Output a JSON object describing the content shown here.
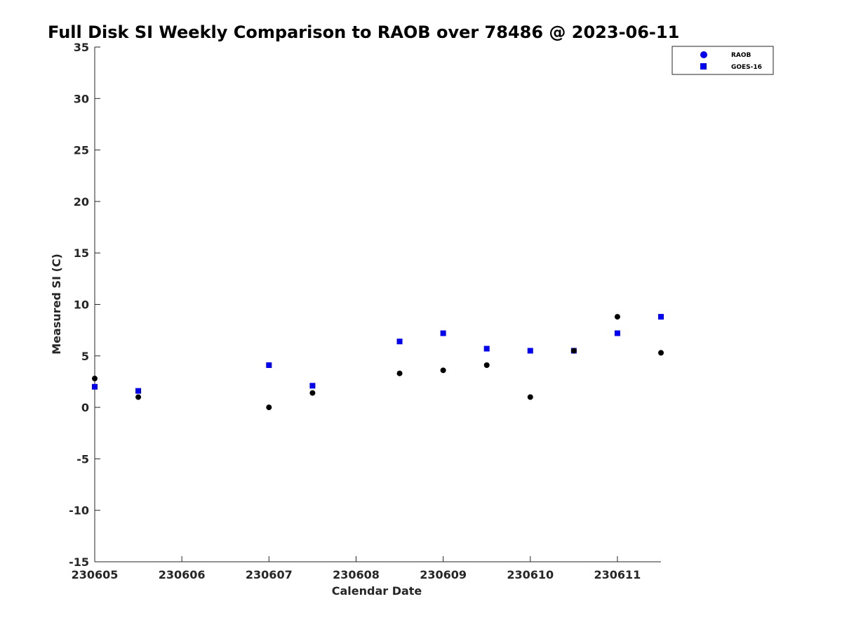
{
  "chart_data": {
    "type": "scatter",
    "title": "Full Disk SI Weekly Comparison to RAOB over 78486 @ 2023-06-11",
    "xlabel": "Calendar Date",
    "ylabel": "Measured SI (C)",
    "xlim": [
      0,
      6.5
    ],
    "ylim": [
      -15,
      35
    ],
    "x_tick_values": [
      0,
      1,
      2,
      3,
      4,
      5,
      6
    ],
    "x_tick_labels": [
      "230605",
      "230606",
      "230607",
      "230608",
      "230609",
      "230610",
      "230611"
    ],
    "y_ticks": [
      -15,
      -10,
      -5,
      0,
      5,
      10,
      15,
      20,
      25,
      30,
      35
    ],
    "grid": false,
    "legend_position": "top-right",
    "series": [
      {
        "name": "RAOB",
        "marker": "circle",
        "color": "#000000",
        "legend_color": "#0000ee",
        "x": [
          0,
          0.5,
          2,
          2.5,
          3.5,
          4,
          4.5,
          5,
          5.5,
          6,
          6.5
        ],
        "y": [
          2.8,
          1.0,
          0.0,
          1.4,
          3.3,
          3.6,
          4.1,
          1.0,
          5.5,
          8.8,
          5.3
        ]
      },
      {
        "name": "GOES-16",
        "marker": "square",
        "color": "#0000ee",
        "x": [
          0,
          0.5,
          2,
          2.5,
          3.5,
          4,
          4.5,
          5,
          5.5,
          6,
          6.5
        ],
        "y": [
          2.0,
          1.6,
          4.1,
          2.1,
          6.4,
          7.2,
          5.7,
          5.5,
          5.5,
          7.2,
          8.8
        ]
      }
    ]
  }
}
